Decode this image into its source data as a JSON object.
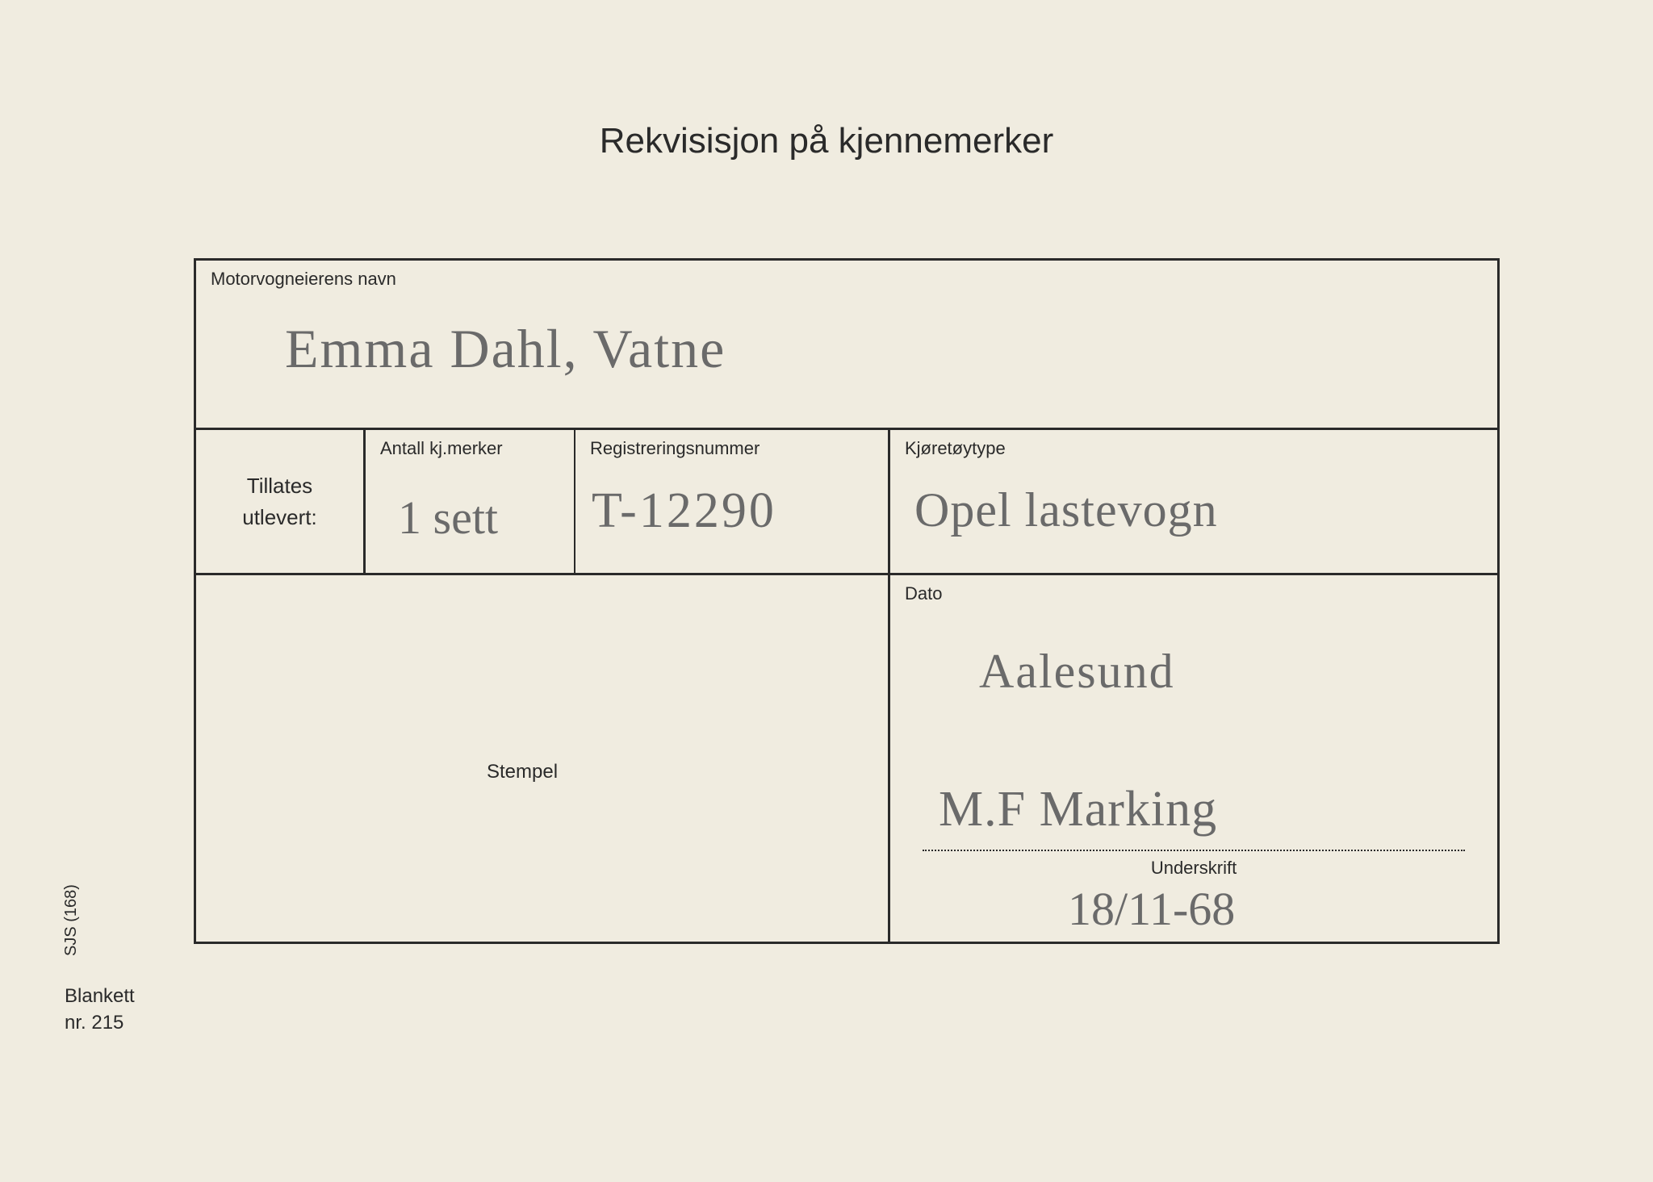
{
  "title": "Rekvisisjon på kjennemerker",
  "owner": {
    "label": "Motorvogneierens navn",
    "value": "Emma Dahl, Vatne"
  },
  "tillates": {
    "line1": "Tillates",
    "line2": "utlevert:"
  },
  "antall": {
    "label": "Antall kj.merker",
    "value": "1 sett"
  },
  "regnr": {
    "label": "Registreringsnummer",
    "value": "T-12290"
  },
  "type": {
    "label": "Kjøretøytype",
    "value": "Opel lastevogn"
  },
  "stempel": {
    "label": "Stempel"
  },
  "dato": {
    "label": "Dato",
    "value": "Aalesund"
  },
  "underskrift": {
    "label": "Underskrift",
    "signature": "M.F Marking",
    "date": "18/11-68"
  },
  "side": "SJS (168)",
  "blankett": {
    "line1": "Blankett",
    "line2": "nr. 215"
  },
  "colors": {
    "paper": "#f0ece0",
    "ink": "#2a2a2a",
    "pencil": "#6a6a6a"
  }
}
